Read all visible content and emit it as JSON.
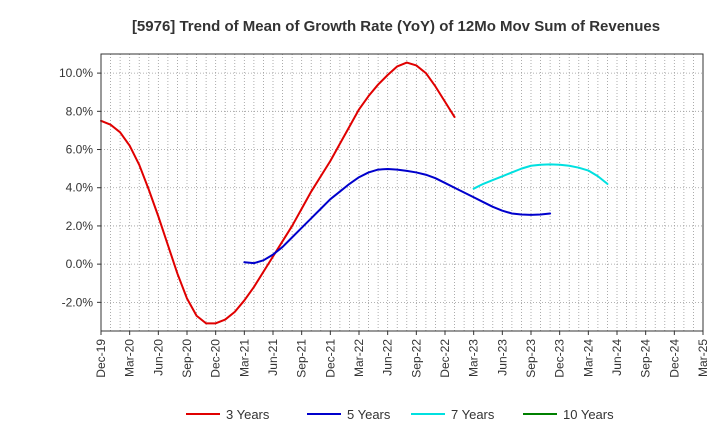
{
  "chart_data": {
    "type": "line",
    "title": "[5976]  Trend of Mean of Growth Rate (YoY) of 12Mo Mov Sum of Revenues",
    "xlabel": "",
    "ylabel": "",
    "x_ticks": [
      "Dec-19",
      "Mar-20",
      "Jun-20",
      "Sep-20",
      "Dec-20",
      "Mar-21",
      "Jun-21",
      "Sep-21",
      "Dec-21",
      "Mar-22",
      "Jun-22",
      "Sep-22",
      "Dec-22",
      "Mar-23",
      "Jun-23",
      "Sep-23",
      "Dec-23",
      "Mar-24",
      "Jun-24",
      "Sep-24",
      "Dec-24",
      "Mar-25"
    ],
    "y_ticks": [
      -2.0,
      0.0,
      2.0,
      4.0,
      6.0,
      8.0,
      10.0
    ],
    "y_tick_labels": [
      "-2.0%",
      "0.0%",
      "2.0%",
      "4.0%",
      "6.0%",
      "8.0%",
      "10.0%"
    ],
    "ylim": [
      -3.5,
      11.0
    ],
    "grid": true,
    "legend_position": "bottom",
    "series": [
      {
        "name": "3 Years",
        "color": "#e00000",
        "start_index": 0,
        "values": [
          7.5,
          7.3,
          6.9,
          6.2,
          5.2,
          3.9,
          2.5,
          1.0,
          -0.5,
          -1.8,
          -2.7,
          -3.1,
          -3.1,
          -2.9,
          -2.5,
          -1.9,
          -1.2,
          -0.4,
          0.4,
          1.2,
          2.0,
          2.9,
          3.8,
          4.6,
          5.4,
          6.3,
          7.2,
          8.1,
          8.8,
          9.4,
          9.9,
          10.35,
          10.55,
          10.4,
          10.0,
          9.3,
          8.5,
          7.7
        ]
      },
      {
        "name": "5 Years",
        "color": "#0000cc",
        "start_index": 15,
        "values": [
          0.1,
          0.05,
          0.2,
          0.5,
          0.9,
          1.4,
          1.9,
          2.4,
          2.9,
          3.4,
          3.8,
          4.2,
          4.55,
          4.8,
          4.95,
          4.98,
          4.95,
          4.88,
          4.8,
          4.68,
          4.5,
          4.25,
          4.0,
          3.75,
          3.5,
          3.25,
          3.0,
          2.8,
          2.65,
          2.6,
          2.58,
          2.6,
          2.65
        ]
      },
      {
        "name": "7 Years",
        "color": "#00e0e0",
        "start_index": 39,
        "values": [
          3.95,
          4.2,
          4.4,
          4.6,
          4.8,
          5.0,
          5.15,
          5.2,
          5.22,
          5.2,
          5.15,
          5.05,
          4.9,
          4.6,
          4.2
        ]
      },
      {
        "name": "10 Years",
        "color": "#008000",
        "start_index": 0,
        "values": []
      }
    ]
  }
}
